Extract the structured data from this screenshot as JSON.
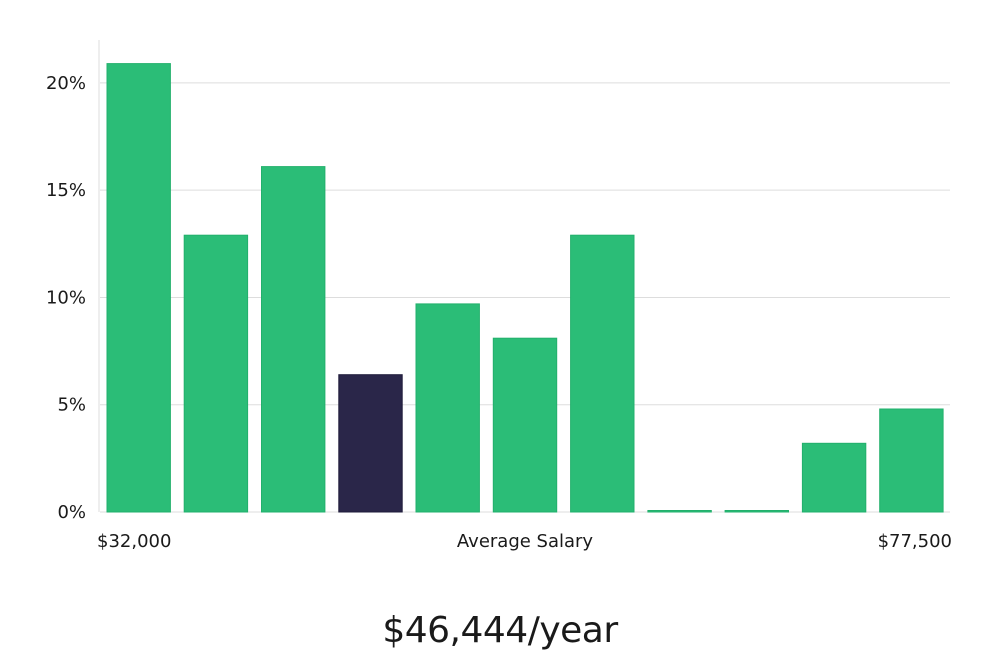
{
  "chart_data": {
    "type": "bar",
    "categories": [
      "1",
      "2",
      "3",
      "4",
      "5",
      "6",
      "7",
      "8",
      "9",
      "10",
      "11"
    ],
    "values": [
      20.9,
      12.9,
      16.1,
      6.4,
      9.7,
      8.1,
      12.9,
      0,
      0,
      3.2,
      4.8
    ],
    "highlight_index": 3,
    "ylim": [
      0,
      22
    ],
    "yticks": [
      0,
      5,
      10,
      15,
      20
    ],
    "ytick_labels": [
      "0%",
      "5%",
      "10%",
      "15%",
      "20%"
    ],
    "xlabel": "Average Salary",
    "x_min_label": "$32,000",
    "x_max_label": "$77,500",
    "grid": true
  },
  "colors": {
    "bar": "#2bbd77",
    "highlight": "#2a2649",
    "grid": "#dddddd"
  },
  "headline": "$46,444/year"
}
